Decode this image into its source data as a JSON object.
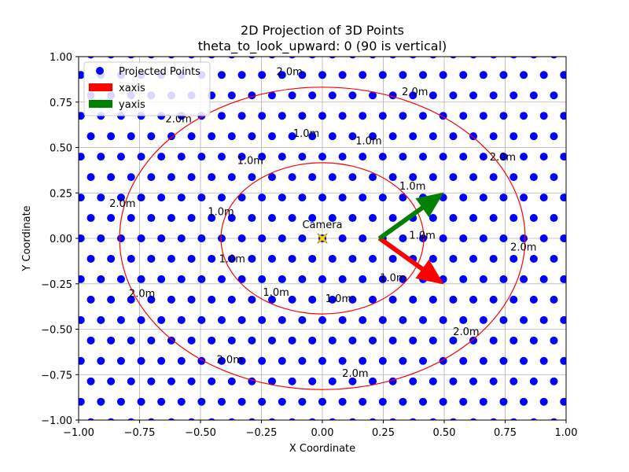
{
  "chart_data": {
    "type": "scatter",
    "title": "2D Projection of 3D Points",
    "subtitle": "theta_to_look_upward: 0 (90 is vertical)",
    "xlabel": "X Coordinate",
    "ylabel": "Y Coordinate",
    "xlim": [
      -1.0,
      1.0
    ],
    "ylim": [
      -1.0,
      1.0
    ],
    "xticks": [
      -1.0,
      -0.75,
      -0.5,
      -0.25,
      0.0,
      0.25,
      0.5,
      0.75,
      1.0
    ],
    "yticks": [
      -1.0,
      -0.75,
      -0.5,
      -0.25,
      0.0,
      0.25,
      0.5,
      0.75,
      1.0
    ],
    "xtick_labels": [
      "−1.00",
      "−0.75",
      "−0.50",
      "−0.25",
      "0.00",
      "0.25",
      "0.50",
      "0.75",
      "1.00"
    ],
    "ytick_labels": [
      "−1.00",
      "−0.75",
      "−0.50",
      "−0.25",
      "0.00",
      "0.25",
      "0.50",
      "0.75",
      "1.00"
    ],
    "grid": true,
    "legend_position": "top-left",
    "legend": [
      {
        "label": "Projected Points",
        "kind": "marker",
        "color": "#0000ff"
      },
      {
        "label": "xaxis",
        "kind": "patch",
        "color": "#ff0000"
      },
      {
        "label": "yaxis",
        "kind": "patch",
        "color": "#008000"
      }
    ],
    "points": {
      "color": "#0000ff",
      "pattern": "staggered lattice",
      "col_spacing": 0.0826,
      "row_spacing": 0.1124,
      "row_offset": 0.0413,
      "x_origin": 0.0,
      "y_origin": 0.0
    },
    "rings": [
      {
        "radius_label": "1.0m",
        "rx": 0.416,
        "ry": 0.416,
        "color": "#ff0000",
        "labels": [
          {
            "text": "1.0m",
            "x": -0.066,
            "y": 0.58
          },
          {
            "text": "1.0m",
            "x": 0.19,
            "y": 0.54
          },
          {
            "text": "1.0m",
            "x": -0.296,
            "y": 0.43
          },
          {
            "text": "1.0m",
            "x": 0.37,
            "y": 0.29
          },
          {
            "text": "1.0m",
            "x": -0.416,
            "y": 0.15
          },
          {
            "text": "1.0m",
            "x": 0.41,
            "y": 0.02
          },
          {
            "text": "1.0m",
            "x": -0.37,
            "y": -0.11
          },
          {
            "text": "1.0m",
            "x": 0.29,
            "y": -0.215
          },
          {
            "text": "1.0m",
            "x": -0.19,
            "y": -0.295
          },
          {
            "text": "1.0m",
            "x": 0.066,
            "y": -0.33
          }
        ]
      },
      {
        "radius_label": "2.0m",
        "rx": 0.832,
        "ry": 0.832,
        "color": "#ff0000",
        "labels": [
          {
            "text": "2.0m",
            "x": -0.135,
            "y": 0.92
          },
          {
            "text": "2.0m",
            "x": 0.38,
            "y": 0.81
          },
          {
            "text": "2.0m",
            "x": -0.59,
            "y": 0.66
          },
          {
            "text": "2.0m",
            "x": 0.74,
            "y": 0.45
          },
          {
            "text": "2.0m",
            "x": -0.82,
            "y": 0.195
          },
          {
            "text": "2.0m",
            "x": 0.825,
            "y": -0.045
          },
          {
            "text": "2.0m",
            "x": -0.74,
            "y": -0.3
          },
          {
            "text": "2.0m",
            "x": 0.59,
            "y": -0.51
          },
          {
            "text": "2.0m",
            "x": -0.38,
            "y": -0.665
          },
          {
            "text": "2.0m",
            "x": 0.135,
            "y": -0.74
          }
        ]
      }
    ],
    "camera": {
      "label": "Camera",
      "x": 0.0,
      "y": 0.0,
      "color": "#ffd400"
    },
    "arrows": [
      {
        "name": "xaxis",
        "color": "#ff0000",
        "x0": 0.235,
        "y0": 0.0,
        "x1": 0.495,
        "y1": -0.25
      },
      {
        "name": "yaxis",
        "color": "#008000",
        "x0": 0.235,
        "y0": 0.0,
        "x1": 0.495,
        "y1": 0.25
      }
    ]
  }
}
